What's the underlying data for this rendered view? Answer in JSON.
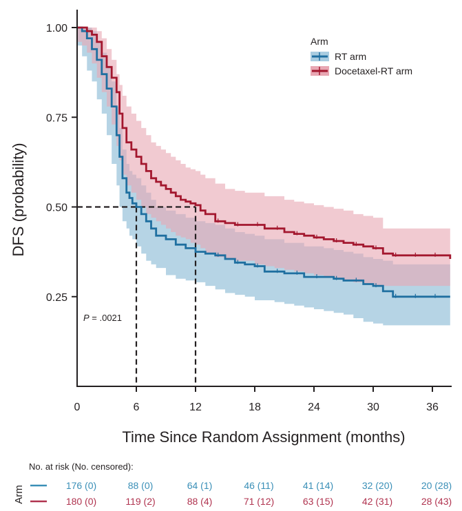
{
  "chart_data": {
    "type": "line",
    "subtype": "kaplan-meier",
    "title": "",
    "xlabel": "Time Since Random Assignment (months)",
    "ylabel": "DFS (probability)",
    "xlim": [
      0,
      37.8
    ],
    "ylim": [
      0,
      1.0
    ],
    "x_ticks": [
      0,
      6,
      12,
      18,
      24,
      30,
      36
    ],
    "x_tick_labels": [
      "0",
      "6",
      "12",
      "18",
      "24",
      "30",
      "36"
    ],
    "y_ticks": [
      0.25,
      0.5,
      0.75,
      1.0
    ],
    "y_tick_labels": [
      "0.25",
      "0.50",
      "0.75",
      "1.00"
    ],
    "grid": false,
    "legend": {
      "title": "Arm",
      "placement": "top-right",
      "entries": [
        "RT arm",
        "Docetaxel-RT arm"
      ]
    },
    "annotation": {
      "p_label": "P",
      "p_value_text": " = .0021"
    },
    "median_reference": {
      "y": 0.5,
      "x_values": [
        6,
        12
      ]
    },
    "series": [
      {
        "name": "RT arm",
        "color": "#1f6fa0",
        "band_color": "#a9cce0",
        "x": [
          0,
          0.5,
          1,
          1.5,
          2,
          2.5,
          3,
          3.5,
          4,
          4.3,
          4.6,
          5,
          5.3,
          5.6,
          6,
          6.5,
          7,
          7.5,
          8,
          9,
          10,
          11,
          12,
          13,
          14,
          15,
          16,
          17,
          18,
          19,
          20,
          21,
          22,
          23,
          24,
          25,
          26,
          27,
          28,
          29,
          30,
          31,
          32,
          33,
          34,
          35,
          36,
          37.8
        ],
        "y": [
          1.0,
          0.99,
          0.97,
          0.94,
          0.91,
          0.87,
          0.83,
          0.78,
          0.7,
          0.64,
          0.58,
          0.54,
          0.525,
          0.51,
          0.5,
          0.48,
          0.46,
          0.44,
          0.42,
          0.41,
          0.395,
          0.385,
          0.375,
          0.37,
          0.365,
          0.355,
          0.345,
          0.34,
          0.335,
          0.32,
          0.32,
          0.315,
          0.315,
          0.305,
          0.305,
          0.305,
          0.3,
          0.295,
          0.295,
          0.285,
          0.28,
          0.265,
          0.25,
          0.25,
          0.25,
          0.25,
          0.25,
          0.25
        ],
        "ci_lower": [
          0.97,
          0.95,
          0.92,
          0.88,
          0.85,
          0.8,
          0.76,
          0.7,
          0.62,
          0.56,
          0.5,
          0.46,
          0.44,
          0.42,
          0.41,
          0.39,
          0.37,
          0.35,
          0.34,
          0.33,
          0.31,
          0.3,
          0.295,
          0.29,
          0.28,
          0.27,
          0.26,
          0.255,
          0.25,
          0.24,
          0.24,
          0.235,
          0.23,
          0.225,
          0.22,
          0.215,
          0.21,
          0.205,
          0.2,
          0.19,
          0.18,
          0.175,
          0.17,
          0.17,
          0.17,
          0.17,
          0.17,
          0.17
        ],
        "ci_upper": [
          1.0,
          1.0,
          1.0,
          0.99,
          0.96,
          0.93,
          0.89,
          0.85,
          0.78,
          0.72,
          0.66,
          0.62,
          0.6,
          0.59,
          0.58,
          0.56,
          0.54,
          0.52,
          0.5,
          0.49,
          0.48,
          0.47,
          0.46,
          0.455,
          0.45,
          0.44,
          0.43,
          0.425,
          0.42,
          0.41,
          0.41,
          0.4,
          0.4,
          0.39,
          0.39,
          0.385,
          0.38,
          0.375,
          0.37,
          0.36,
          0.355,
          0.35,
          0.34,
          0.34,
          0.34,
          0.34,
          0.34,
          0.34
        ]
      },
      {
        "name": "Docetaxel-RT arm",
        "color": "#a3172e",
        "band_color": "#e8a7b3",
        "x": [
          0,
          0.5,
          1,
          1.5,
          2,
          2.5,
          3,
          3.5,
          4,
          4.3,
          4.6,
          5,
          5.5,
          6,
          6.5,
          7,
          7.5,
          8,
          8.5,
          9,
          9.5,
          10,
          10.5,
          11,
          11.5,
          12,
          12.5,
          13,
          14,
          15,
          16,
          17,
          18,
          19,
          20,
          21,
          22,
          23,
          24,
          25,
          26,
          27,
          28,
          29,
          30,
          31,
          32,
          33,
          34,
          35,
          36,
          37.8
        ],
        "y": [
          1.0,
          1.0,
          0.99,
          0.98,
          0.96,
          0.92,
          0.89,
          0.86,
          0.82,
          0.76,
          0.72,
          0.68,
          0.66,
          0.64,
          0.62,
          0.6,
          0.58,
          0.57,
          0.56,
          0.55,
          0.54,
          0.53,
          0.52,
          0.515,
          0.51,
          0.505,
          0.49,
          0.48,
          0.46,
          0.455,
          0.45,
          0.45,
          0.45,
          0.44,
          0.44,
          0.43,
          0.425,
          0.42,
          0.415,
          0.41,
          0.405,
          0.4,
          0.395,
          0.39,
          0.385,
          0.37,
          0.365,
          0.365,
          0.365,
          0.365,
          0.365,
          0.355
        ],
        "ci_lower": [
          0.97,
          0.96,
          0.95,
          0.93,
          0.9,
          0.86,
          0.82,
          0.78,
          0.73,
          0.67,
          0.63,
          0.59,
          0.56,
          0.54,
          0.52,
          0.5,
          0.48,
          0.47,
          0.46,
          0.45,
          0.44,
          0.43,
          0.42,
          0.415,
          0.41,
          0.4,
          0.395,
          0.385,
          0.37,
          0.36,
          0.355,
          0.35,
          0.35,
          0.34,
          0.335,
          0.33,
          0.325,
          0.32,
          0.315,
          0.31,
          0.305,
          0.3,
          0.295,
          0.29,
          0.285,
          0.28,
          0.28,
          0.28,
          0.28,
          0.28,
          0.28,
          0.28
        ],
        "ci_upper": [
          1.0,
          1.0,
          1.0,
          1.0,
          0.99,
          0.97,
          0.94,
          0.91,
          0.87,
          0.84,
          0.81,
          0.78,
          0.76,
          0.74,
          0.72,
          0.7,
          0.68,
          0.67,
          0.66,
          0.65,
          0.64,
          0.63,
          0.62,
          0.61,
          0.605,
          0.6,
          0.59,
          0.58,
          0.565,
          0.55,
          0.545,
          0.54,
          0.54,
          0.53,
          0.53,
          0.52,
          0.515,
          0.51,
          0.505,
          0.5,
          0.495,
          0.49,
          0.48,
          0.475,
          0.47,
          0.44,
          0.44,
          0.44,
          0.44,
          0.44,
          0.44,
          0.44
        ]
      }
    ]
  },
  "risk_table": {
    "title": "No. at risk (No. censored):",
    "group_label": "Arm",
    "time_points": [
      0,
      6,
      12,
      18,
      24,
      30,
      36
    ],
    "rows": [
      {
        "name": "RT arm",
        "color": "#3a8fb7",
        "values": [
          "176 (0)",
          "88 (0)",
          "64 (1)",
          "46 (11)",
          "41 (14)",
          "32 (20)",
          "20 (28)"
        ]
      },
      {
        "name": "Docetaxel-RT arm",
        "color": "#b0334f",
        "values": [
          "180 (0)",
          "119 (2)",
          "88 (4)",
          "71 (12)",
          "63 (15)",
          "42 (31)",
          "28 (43)"
        ]
      }
    ]
  }
}
